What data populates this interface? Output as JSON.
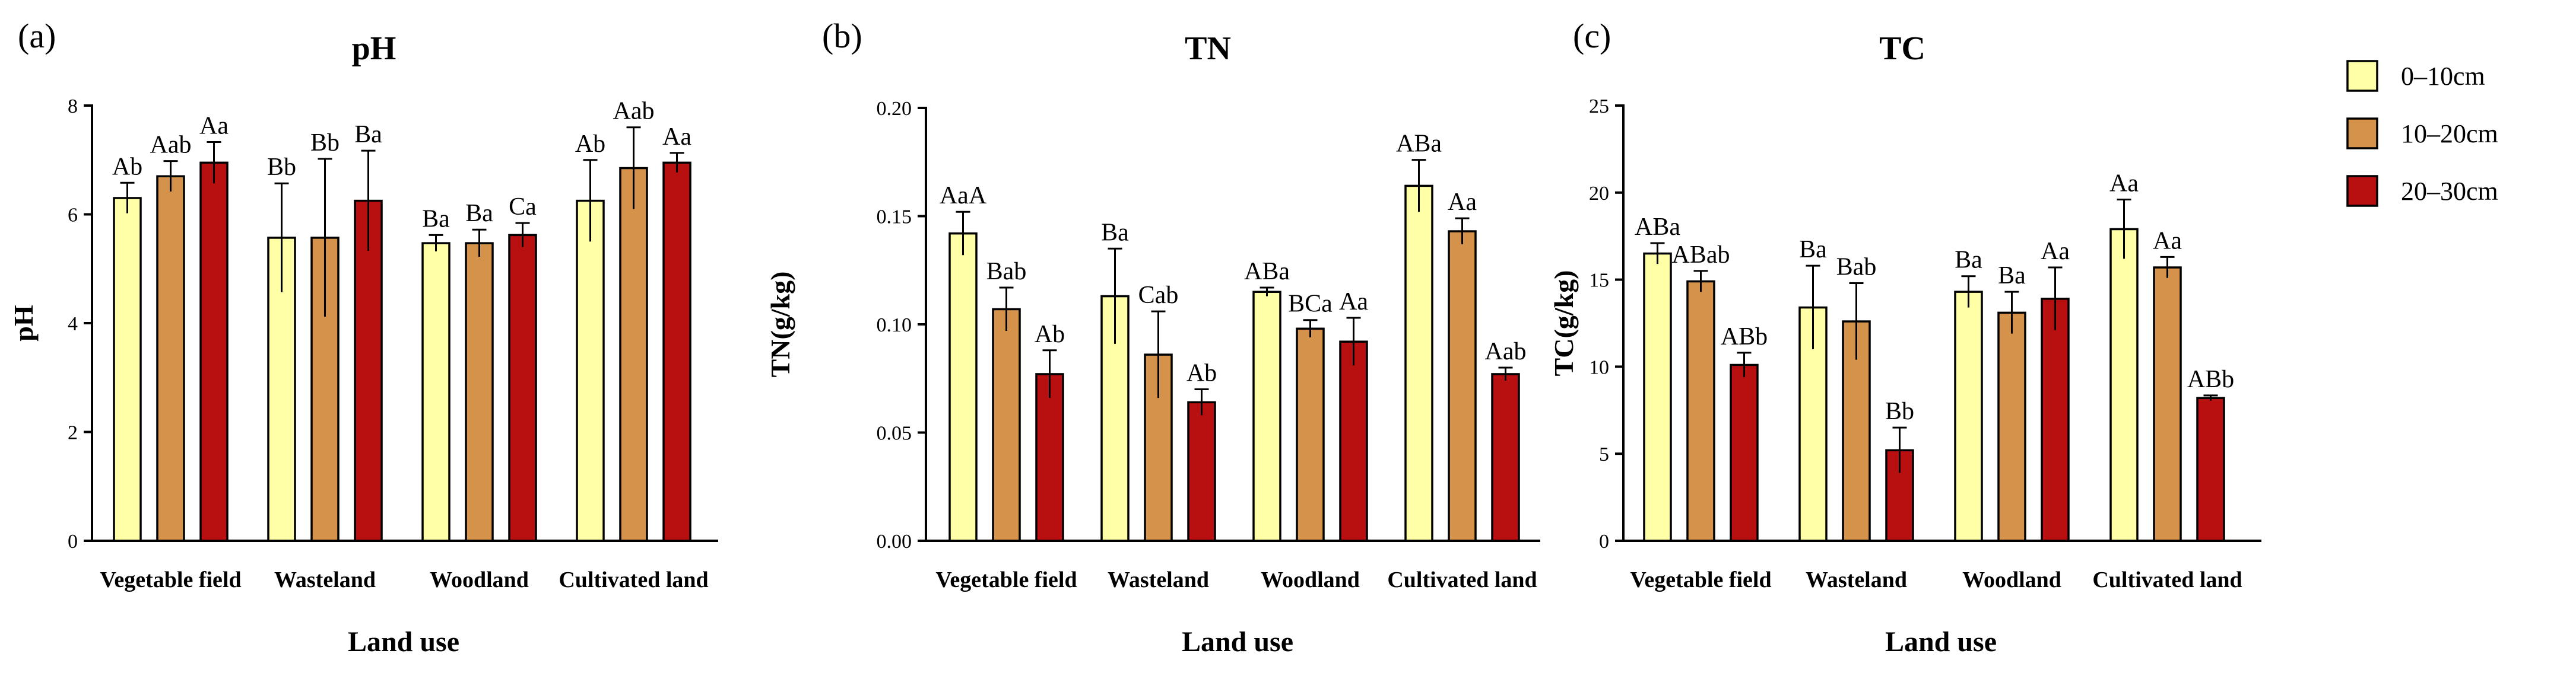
{
  "legend": {
    "entries": [
      "0–10cm",
      "10–20cm",
      "20–30cm"
    ],
    "colors": [
      "#ffffa8",
      "#d4924b",
      "#b81010"
    ]
  },
  "chart_data": [
    {
      "type": "bar",
      "panel_label": "(a)",
      "title": "pH",
      "xlabel": "Land use",
      "ylabel": "pH",
      "ylim": [
        0,
        8
      ],
      "yticks": [
        "0",
        "2",
        "4",
        "6",
        "8"
      ],
      "categories": [
        "Vegetable field",
        "Wasteland",
        "Woodland",
        "Cultivated land"
      ],
      "series": [
        {
          "name": "0–10cm",
          "values": [
            6.3,
            5.57,
            5.47,
            6.25
          ],
          "errors": [
            0.28,
            1.0,
            0.15,
            0.75
          ],
          "labels": [
            "Ab",
            "Bb",
            "Ba",
            "Ab"
          ]
        },
        {
          "name": "10–20cm",
          "values": [
            6.7,
            5.57,
            5.47,
            6.85
          ],
          "errors": [
            0.28,
            1.45,
            0.25,
            0.75
          ],
          "labels": [
            "Aab",
            "Bb",
            "Ba",
            "Aab"
          ]
        },
        {
          "name": "20–30cm",
          "values": [
            6.95,
            6.25,
            5.62,
            6.95
          ],
          "errors": [
            0.38,
            0.92,
            0.22,
            0.18
          ],
          "labels": [
            "Aa",
            "Ba",
            "Ca",
            "Aa"
          ]
        }
      ]
    },
    {
      "type": "bar",
      "panel_label": "(b)",
      "title": "TN",
      "xlabel": "Land use",
      "ylabel": "TN(g/kg)",
      "ylim": [
        0,
        0.2
      ],
      "yticks": [
        "0.00",
        "0.05",
        "0.10",
        "0.15",
        "0.20"
      ],
      "categories": [
        "Vegetable field",
        "Wasteland",
        "Woodland",
        "Cultivated land"
      ],
      "series": [
        {
          "name": "0–10cm",
          "values": [
            0.142,
            0.113,
            0.115,
            0.164
          ],
          "errors": [
            0.01,
            0.022,
            0.002,
            0.012
          ],
          "labels": [
            "AaA",
            "Ba",
            "ABa",
            "ABa"
          ]
        },
        {
          "name": "10–20cm",
          "values": [
            0.107,
            0.086,
            0.098,
            0.143
          ],
          "errors": [
            0.01,
            0.02,
            0.004,
            0.006
          ],
          "labels": [
            "Bab",
            "Cab",
            "BCa",
            "Aa"
          ]
        },
        {
          "name": "20–30cm",
          "values": [
            0.077,
            0.064,
            0.092,
            0.077
          ],
          "errors": [
            0.011,
            0.006,
            0.011,
            0.003
          ],
          "labels": [
            "Ab",
            "Ab",
            "Aa",
            "Aab"
          ]
        }
      ]
    },
    {
      "type": "bar",
      "panel_label": "(c)",
      "title": "TC",
      "xlabel": "Land use",
      "ylabel": "TC(g/kg)",
      "ylim": [
        0,
        25
      ],
      "yticks": [
        "0",
        "5",
        "10",
        "15",
        "20",
        "25"
      ],
      "categories": [
        "Vegetable field",
        "Wasteland",
        "Woodland",
        "Cultivated land"
      ],
      "series": [
        {
          "name": "0–10cm",
          "values": [
            16.5,
            13.4,
            14.3,
            17.9
          ],
          "errors": [
            0.6,
            2.4,
            0.9,
            1.7
          ],
          "labels": [
            "ABa",
            "Ba",
            "Ba",
            "Aa"
          ]
        },
        {
          "name": "10–20cm",
          "values": [
            14.9,
            12.6,
            13.1,
            15.7
          ],
          "errors": [
            0.6,
            2.2,
            1.2,
            0.6
          ],
          "labels": [
            "ABab",
            "Bab",
            "Ba",
            "Aa"
          ]
        },
        {
          "name": "20–30cm",
          "values": [
            10.1,
            5.2,
            13.9,
            8.2
          ],
          "errors": [
            0.7,
            1.3,
            1.8,
            0.15
          ],
          "labels": [
            "ABb",
            "Bb",
            "Aa",
            "ABb"
          ]
        }
      ]
    }
  ]
}
